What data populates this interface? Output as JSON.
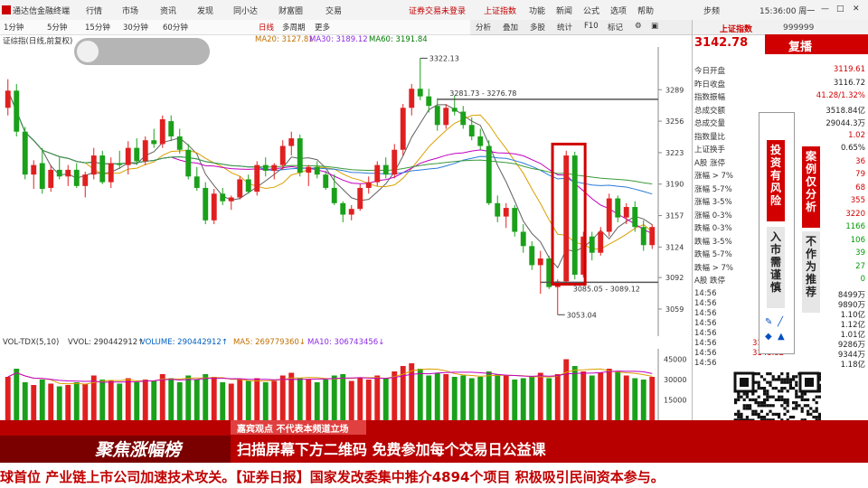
{
  "menubar": {
    "app_title": "通达信金融终端",
    "items": [
      "行情",
      "市场",
      "资讯",
      "发现",
      "同小达",
      "财富圈",
      "交易"
    ],
    "notice": "证券交易未登录",
    "notice2": "上证指数",
    "right_items": [
      "功能",
      "新闻",
      "公式",
      "选项",
      "帮助",
      "步频"
    ],
    "time": "15:36:00 周一"
  },
  "toolbar": {
    "periods": [
      "1分钟",
      "5分钟",
      "15分钟",
      "30分钟",
      "60分钟",
      "日线",
      "多周期"
    ],
    "extra": "更多",
    "right_buttons": [
      "分析",
      "叠加",
      "多股",
      "统计",
      "F10",
      "标记"
    ]
  },
  "infobar": {
    "title": "证综指(日线,前复权)",
    "ma20": "MA20: 3127.81",
    "ma30": "MA30: 3189.12",
    "ma60": "MA60: 3191.84"
  },
  "price_axis": [
    "3289",
    "3256",
    "3223",
    "3190",
    "3157",
    "3124",
    "3092",
    "3059"
  ],
  "annotations": {
    "high": "3322.13",
    "resist": "3281.73 - 3276.78",
    "support": "3085.05 - 3089.12",
    "low": "3053.04"
  },
  "volume": {
    "label": "VOL-TDX(5,10)",
    "vvol": "VVOL: 290442912↑",
    "volume": "VOLUME: 290442912↑",
    "ma5": "MA5: 269779360↓",
    "ma10": "MA10: 306743456↓",
    "axis": [
      "45000",
      "30000",
      "15000"
    ]
  },
  "quote": {
    "index_name": "上证指数",
    "code": "999999",
    "price": "3142.78",
    "replay_label": "复播",
    "rows": [
      {
        "label": "今日开盘",
        "value": "3119.61",
        "color": "red"
      },
      {
        "label": "昨日收盘",
        "value": "3116.72",
        "color": "black"
      },
      {
        "label": "指数振幅",
        "value": "41.28/1.32%",
        "color": "red"
      },
      {
        "label": "总成交额",
        "value": "3518.84亿",
        "color": "black"
      },
      {
        "label": "总成交量",
        "value": "29044.3万",
        "color": "black"
      },
      {
        "label": "指数量比",
        "value": "1.02",
        "color": "red"
      },
      {
        "label": "上证换手",
        "value": "0.65%",
        "color": "black"
      },
      {
        "label": "A股 涨停",
        "value": "36",
        "color": "red"
      },
      {
        "label": "涨幅 > 7%",
        "value": "79",
        "color": "red"
      },
      {
        "label": "涨幅 5-7%",
        "value": "68",
        "color": "red"
      },
      {
        "label": "涨幅 3-5%",
        "value": "355",
        "color": "red"
      },
      {
        "label": "涨幅 0-3%",
        "value": "3220",
        "color": "red"
      },
      {
        "label": "跌幅 0-3%",
        "value": "1166",
        "color": "green"
      },
      {
        "label": "跌幅 3-5%",
        "value": "106",
        "color": "green"
      },
      {
        "label": "跌幅 5-7%",
        "value": "39",
        "color": "green"
      },
      {
        "label": "跌幅 > 7%",
        "value": "27",
        "color": "green"
      },
      {
        "label": "A股 跌停",
        "value": "0",
        "color": "green"
      }
    ],
    "ticks": [
      {
        "time": "14:56",
        "vol": "8499万"
      },
      {
        "time": "14:56",
        "vol": "9890万"
      },
      {
        "time": "14:56",
        "vol": "1.10亿"
      },
      {
        "time": "14:56",
        "vol": "1.12亿"
      },
      {
        "time": "14:56",
        "vol": "1.01亿"
      },
      {
        "time": "14:56",
        "price": "3143.51",
        "vol": "9286万"
      },
      {
        "time": "14:56",
        "price": "3143.32",
        "vol": "9344万"
      },
      {
        "time": "14:56",
        "vol": "1.18亿"
      }
    ]
  },
  "vertical_notes": {
    "left1": "投资有风险",
    "left2": "入市需谨慎",
    "right1": "案例仅分析",
    "right2": "不作为推荐"
  },
  "banner": {
    "logo": "聚焦涨幅榜",
    "line1": "嘉宾观点 不代表本频道立场",
    "line2": "扫描屏幕下方二维码 免费参加每个交易日公益课"
  },
  "ticker": {
    "text": "球首位 产业链上市公司加速技术攻关。【证券日报】国家发改委集中推介4894个项目 积极吸引民间资本参与。"
  },
  "chart_data": {
    "type": "candlestick",
    "ylim": [
      3040,
      3330
    ],
    "candles": [
      [
        3270,
        3300,
        3262,
        3288
      ],
      [
        3288,
        3295,
        3240,
        3245
      ],
      [
        3245,
        3250,
        3195,
        3200
      ],
      [
        3200,
        3215,
        3185,
        3210
      ],
      [
        3212,
        3228,
        3180,
        3185
      ],
      [
        3186,
        3210,
        3182,
        3205
      ],
      [
        3205,
        3218,
        3195,
        3198
      ],
      [
        3198,
        3210,
        3188,
        3205
      ],
      [
        3205,
        3212,
        3186,
        3188
      ],
      [
        3188,
        3203,
        3176,
        3200
      ],
      [
        3200,
        3228,
        3195,
        3220
      ],
      [
        3220,
        3225,
        3190,
        3192
      ],
      [
        3192,
        3218,
        3186,
        3212
      ],
      [
        3212,
        3225,
        3206,
        3210
      ],
      [
        3210,
        3235,
        3200,
        3228
      ],
      [
        3228,
        3238,
        3210,
        3214
      ],
      [
        3214,
        3240,
        3210,
        3236
      ],
      [
        3236,
        3248,
        3228,
        3232
      ],
      [
        3232,
        3262,
        3228,
        3258
      ],
      [
        3256,
        3262,
        3235,
        3240
      ],
      [
        3240,
        3248,
        3222,
        3226
      ],
      [
        3226,
        3232,
        3195,
        3198
      ],
      [
        3198,
        3208,
        3183,
        3186
      ],
      [
        3186,
        3192,
        3148,
        3152
      ],
      [
        3152,
        3185,
        3148,
        3180
      ],
      [
        3180,
        3186,
        3168,
        3172
      ],
      [
        3172,
        3178,
        3163,
        3176
      ],
      [
        3176,
        3198,
        3174,
        3195
      ],
      [
        3195,
        3200,
        3180,
        3182
      ],
      [
        3182,
        3214,
        3178,
        3210
      ],
      [
        3210,
        3218,
        3198,
        3204
      ],
      [
        3204,
        3212,
        3195,
        3210
      ],
      [
        3210,
        3236,
        3205,
        3230
      ],
      [
        3230,
        3245,
        3220,
        3238
      ],
      [
        3238,
        3242,
        3198,
        3202
      ],
      [
        3202,
        3210,
        3188,
        3208
      ],
      [
        3208,
        3214,
        3196,
        3200
      ],
      [
        3200,
        3204,
        3184,
        3186
      ],
      [
        3186,
        3200,
        3168,
        3170
      ],
      [
        3170,
        3172,
        3150,
        3158
      ],
      [
        3158,
        3168,
        3152,
        3164
      ],
      [
        3164,
        3190,
        3162,
        3186
      ],
      [
        3186,
        3198,
        3180,
        3192
      ],
      [
        3192,
        3214,
        3188,
        3210
      ],
      [
        3210,
        3218,
        3196,
        3200
      ],
      [
        3200,
        3232,
        3196,
        3226
      ],
      [
        3226,
        3274,
        3220,
        3270
      ],
      [
        3270,
        3295,
        3262,
        3290
      ],
      [
        3290,
        3322,
        3278,
        3282
      ],
      [
        3282,
        3290,
        3265,
        3272
      ],
      [
        3272,
        3280,
        3246,
        3252
      ],
      [
        3252,
        3274,
        3248,
        3270
      ],
      [
        3270,
        3283,
        3262,
        3266
      ],
      [
        3266,
        3272,
        3248,
        3252
      ],
      [
        3252,
        3260,
        3236,
        3240
      ],
      [
        3240,
        3248,
        3226,
        3230
      ],
      [
        3230,
        3236,
        3168,
        3170
      ],
      [
        3170,
        3178,
        3150,
        3156
      ],
      [
        3156,
        3170,
        3144,
        3165
      ],
      [
        3165,
        3168,
        3135,
        3140
      ],
      [
        3140,
        3148,
        3118,
        3125
      ],
      [
        3125,
        3130,
        3100,
        3105
      ],
      [
        3105,
        3120,
        3075,
        3112
      ],
      [
        3112,
        3115,
        3080,
        3082
      ],
      [
        3082,
        3090,
        3053,
        3088
      ],
      [
        3088,
        3225,
        3085,
        3220
      ],
      [
        3220,
        3224,
        3090,
        3095
      ],
      [
        3095,
        3140,
        3092,
        3135
      ],
      [
        3135,
        3140,
        3110,
        3118
      ],
      [
        3118,
        3145,
        3115,
        3140
      ],
      [
        3140,
        3180,
        3135,
        3175
      ],
      [
        3175,
        3178,
        3150,
        3155
      ],
      [
        3155,
        3170,
        3148,
        3166
      ],
      [
        3166,
        3172,
        3140,
        3145
      ],
      [
        3145,
        3152,
        3120,
        3126
      ],
      [
        3126,
        3148,
        3122,
        3145
      ]
    ],
    "volumes": [
      32,
      38,
      28,
      26,
      30,
      27,
      25,
      26,
      28,
      27,
      33,
      30,
      29,
      27,
      31,
      28,
      30,
      29,
      34,
      31,
      28,
      33,
      30,
      34,
      32,
      28,
      27,
      30,
      29,
      31,
      28,
      29,
      33,
      35,
      31,
      30,
      28,
      30,
      33,
      34,
      29,
      31,
      30,
      33,
      31,
      36,
      40,
      42,
      38,
      33,
      35,
      34,
      32,
      33,
      31,
      32,
      36,
      34,
      33,
      30,
      31,
      32,
      35,
      31,
      34,
      45,
      40,
      36,
      33,
      35,
      38,
      36,
      33,
      31,
      30,
      32
    ],
    "xlabel": "",
    "ylabel": ""
  }
}
